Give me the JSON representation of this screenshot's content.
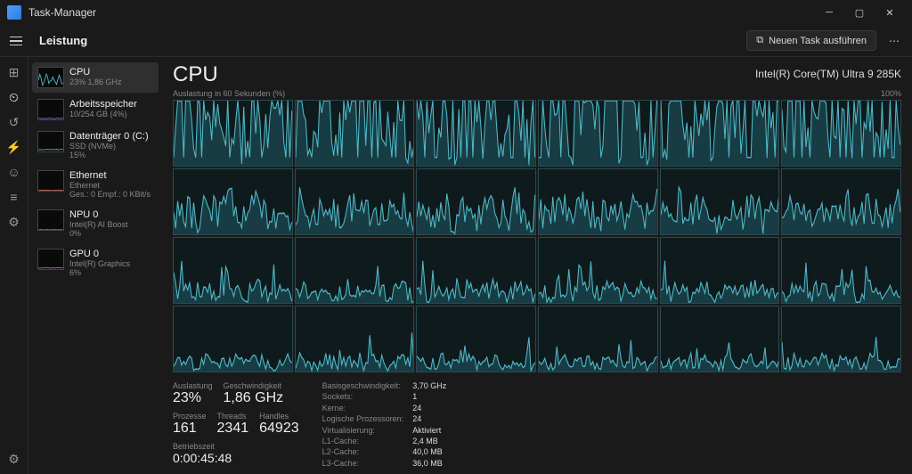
{
  "window": {
    "title": "Task-Manager"
  },
  "section": "Leistung",
  "newtask": "Neuen Task ausführen",
  "sidebar": [
    {
      "name": "CPU",
      "sub": "23%   1,86 GHz",
      "color": "#4fb8c7",
      "fill": 0.35,
      "busy": true
    },
    {
      "name": "Arbeitsspeicher",
      "sub": "10/254 GB (4%)",
      "color": "#8a5fc7",
      "fill": 0.05,
      "busy": false
    },
    {
      "name": "Datenträger 0 (C:)",
      "sub": "SSD (NVMe)\n15%",
      "color": "#5fc77a",
      "fill": 0.1,
      "busy": false
    },
    {
      "name": "Ethernet",
      "sub": "Ethernet\nGes.: 0 Empf.: 0 KBit/s",
      "color": "#c76f5f",
      "fill": 0.02,
      "busy": false
    },
    {
      "name": "NPU 0",
      "sub": "Intel(R) AI Boost\n0%",
      "color": "#4fb8c7",
      "fill": 0.0,
      "busy": false
    },
    {
      "name": "GPU 0",
      "sub": "Intel(R) Graphics\n6%",
      "color": "#b85fc7",
      "fill": 0.06,
      "busy": false
    }
  ],
  "cpu": {
    "title": "CPU",
    "model": "Intel(R) Core(TM) Ultra 9 285K",
    "axis_left": "Auslastung in 60 Sekunden (%)",
    "axis_right": "100%",
    "cores": 24,
    "chart": {
      "stroke": "#4fb8c7",
      "fill": "#1a4048",
      "border": "#2a4a52",
      "row_intensity": [
        0.85,
        0.35,
        0.18,
        0.14
      ]
    }
  },
  "stats": {
    "auslastung_label": "Auslastung",
    "auslastung": "23%",
    "gesch_label": "Geschwindigkeit",
    "gesch": "1,86 GHz",
    "prozesse_label": "Prozesse",
    "prozesse": "161",
    "threads_label": "Threads",
    "threads": "2341",
    "handles_label": "Handles",
    "handles": "64923",
    "betrieb_label": "Betriebszeit",
    "betrieb": "0:00:45:48"
  },
  "details": [
    {
      "k": "Basisgeschwindigkeit:",
      "v": "3,70 GHz"
    },
    {
      "k": "Sockets:",
      "v": "1"
    },
    {
      "k": "Kerne:",
      "v": "24"
    },
    {
      "k": "Logische Prozessoren:",
      "v": "24"
    },
    {
      "k": "Virtualisierung:",
      "v": "Aktiviert"
    },
    {
      "k": "L1-Cache:",
      "v": "2,4 MB"
    },
    {
      "k": "L2-Cache:",
      "v": "40,0 MB"
    },
    {
      "k": "L3-Cache:",
      "v": "36,0 MB"
    }
  ]
}
